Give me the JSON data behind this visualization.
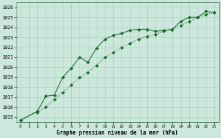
{
  "xlabel": "Graphe pression niveau de la mer (hPa)",
  "bg_color": "#cce8dc",
  "grid_color": "#99ccbb",
  "line_color": "#1a6b2a",
  "hours": [
    0,
    1,
    2,
    3,
    4,
    5,
    6,
    7,
    8,
    9,
    10,
    11,
    12,
    13,
    14,
    15,
    16,
    17,
    18,
    19,
    20,
    21,
    22,
    23
  ],
  "series1": [
    1014.7,
    null,
    1015.6,
    1017.1,
    1017.2,
    1019.0,
    1019.9,
    1021.0,
    1020.5,
    1021.9,
    1022.8,
    1023.2,
    1023.4,
    1023.7,
    1023.8,
    1023.8,
    1023.6,
    1023.7,
    1023.8,
    1024.6,
    1025.0,
    1025.0,
    1025.6,
    1025.5
  ],
  "series2": [
    1014.7,
    null,
    1015.5,
    1016.0,
    1016.8,
    1017.5,
    1018.2,
    1019.0,
    1019.5,
    1020.2,
    1021.0,
    1021.5,
    1022.0,
    1022.4,
    1022.8,
    1023.1,
    1023.3,
    1023.6,
    1023.8,
    1024.2,
    1024.6,
    1025.0,
    1025.3,
    1025.5
  ],
  "ylim": [
    1014.5,
    1026.5
  ],
  "yticks": [
    1015,
    1016,
    1017,
    1018,
    1019,
    1020,
    1021,
    1022,
    1023,
    1024,
    1025,
    1026
  ],
  "xlim": [
    -0.5,
    23.5
  ],
  "xticks": [
    0,
    1,
    2,
    3,
    4,
    5,
    6,
    7,
    8,
    9,
    10,
    11,
    12,
    13,
    14,
    15,
    16,
    17,
    18,
    19,
    20,
    21,
    22,
    23
  ]
}
